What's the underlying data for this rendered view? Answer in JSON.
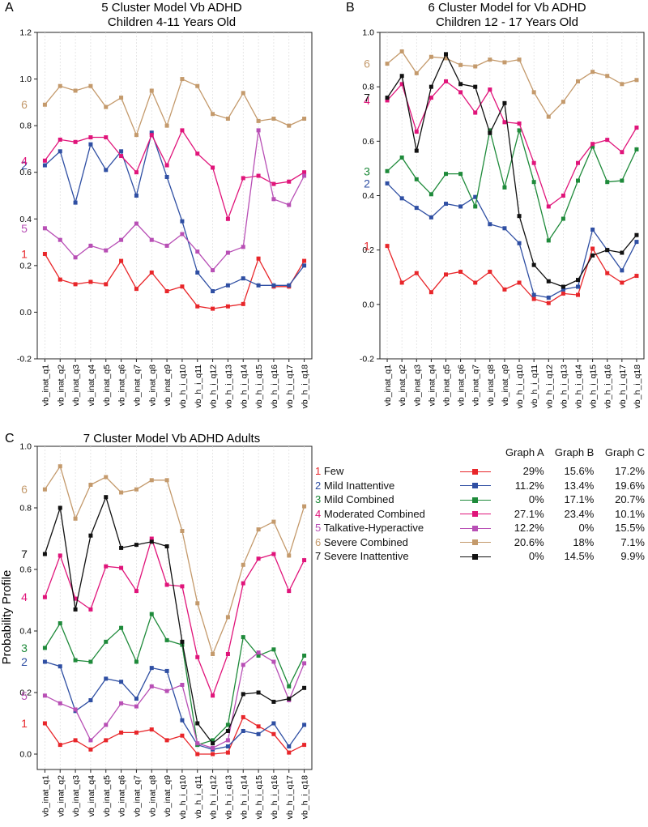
{
  "categories": [
    "vb_inat_q1",
    "vb_inat_q2",
    "vb_inat_q3",
    "vb_inat_q4",
    "vb_inat_q5",
    "vb_inat_q6",
    "vb_inat_q7",
    "vb_inat_q8",
    "vb_inat_q9",
    "vb_h_i_q10",
    "vb_h_i_q11",
    "vb_h_i_q12",
    "vb_h_i_q13",
    "vb_h_i_q14",
    "vb_h_i_q15",
    "vb_h_i_q16",
    "vb_h_i_q17",
    "vb_h_i_q18"
  ],
  "clusters": [
    {
      "id": "1",
      "name": "Few",
      "color": "#e8262a",
      "pctA": "29%",
      "pctB": "15.6%",
      "pctC": "17.2%"
    },
    {
      "id": "2",
      "name": "Mild Inattentive",
      "color": "#2f4fa3",
      "pctA": "11.2%",
      "pctB": "13.4%",
      "pctC": "19.6%"
    },
    {
      "id": "3",
      "name": "Mild Combined",
      "color": "#1e8a3a",
      "pctA": "0%",
      "pctB": "17.1%",
      "pctC": "20.7%"
    },
    {
      "id": "4",
      "name": "Moderated Combined",
      "color": "#e0147a",
      "pctA": "27.1%",
      "pctB": "23.4%",
      "pctC": "10.1%"
    },
    {
      "id": "5",
      "name": "Talkative-Hyperactive",
      "color": "#b84fb5",
      "pctA": "12.2%",
      "pctB": "0%",
      "pctC": "15.5%"
    },
    {
      "id": "6",
      "name": "Severe Combined",
      "color": "#c49a6c",
      "pctA": "20.6%",
      "pctB": "18%",
      "pctC": "7.1%"
    },
    {
      "id": "7",
      "name": "Severe Inattentive",
      "color": "#111111",
      "pctA": "0%",
      "pctB": "14.5%",
      "pctC": "9.9%"
    }
  ],
  "legend": {
    "col_a": "Graph A",
    "col_b": "Graph B",
    "col_c": "Graph C"
  },
  "y_axis_label": "Probability Profile",
  "chart_data": [
    {
      "panel": "A",
      "type": "line",
      "title": "5 Cluster Model Vb ADHD",
      "subtitle": "Children 4-11 Years Old",
      "ylim": [
        -0.2,
        1.2
      ],
      "yticks": [
        -0.2,
        0.0,
        0.2,
        0.4,
        0.6,
        0.8,
        1.0,
        1.2
      ],
      "series": [
        {
          "cluster": "1",
          "values": [
            0.25,
            0.14,
            0.12,
            0.13,
            0.12,
            0.22,
            0.1,
            0.17,
            0.09,
            0.11,
            0.025,
            0.015,
            0.025,
            0.035,
            0.23,
            0.11,
            0.11,
            0.22
          ]
        },
        {
          "cluster": "2",
          "values": [
            0.63,
            0.69,
            0.47,
            0.72,
            0.61,
            0.69,
            0.5,
            0.77,
            0.58,
            0.39,
            0.17,
            0.09,
            0.115,
            0.145,
            0.115,
            0.115,
            0.115,
            0.2
          ]
        },
        {
          "cluster": "4",
          "values": [
            0.65,
            0.74,
            0.73,
            0.75,
            0.75,
            0.67,
            0.6,
            0.76,
            0.63,
            0.78,
            0.68,
            0.62,
            0.4,
            0.575,
            0.585,
            0.55,
            0.56,
            0.6
          ]
        },
        {
          "cluster": "5",
          "values": [
            0.36,
            0.31,
            0.235,
            0.285,
            0.265,
            0.31,
            0.38,
            0.31,
            0.285,
            0.335,
            0.26,
            0.18,
            0.255,
            0.28,
            0.78,
            0.485,
            0.46,
            0.585
          ]
        },
        {
          "cluster": "6",
          "values": [
            0.89,
            0.97,
            0.95,
            0.97,
            0.88,
            0.92,
            0.76,
            0.95,
            0.8,
            1.0,
            0.97,
            0.85,
            0.83,
            0.94,
            0.82,
            0.83,
            0.8,
            0.83
          ]
        }
      ]
    },
    {
      "panel": "B",
      "type": "line",
      "title": "6 Cluster Model for Vb ADHD",
      "subtitle": "Children 12 - 17 Years Old",
      "ylim": [
        -0.2,
        1.0
      ],
      "yticks": [
        -0.2,
        0.0,
        0.2,
        0.4,
        0.6,
        0.8,
        1.0
      ],
      "series": [
        {
          "cluster": "1",
          "values": [
            0.215,
            0.08,
            0.115,
            0.045,
            0.11,
            0.12,
            0.08,
            0.12,
            0.055,
            0.08,
            0.02,
            0.005,
            0.04,
            0.035,
            0.205,
            0.115,
            0.08,
            0.105
          ]
        },
        {
          "cluster": "2",
          "values": [
            0.445,
            0.39,
            0.355,
            0.32,
            0.37,
            0.36,
            0.395,
            0.295,
            0.28,
            0.225,
            0.035,
            0.025,
            0.055,
            0.065,
            0.275,
            0.2,
            0.125,
            0.23
          ]
        },
        {
          "cluster": "3",
          "values": [
            0.49,
            0.54,
            0.46,
            0.405,
            0.48,
            0.48,
            0.36,
            0.64,
            0.43,
            0.64,
            0.45,
            0.235,
            0.315,
            0.455,
            0.58,
            0.45,
            0.455,
            0.57
          ]
        },
        {
          "cluster": "4",
          "values": [
            0.75,
            0.81,
            0.635,
            0.76,
            0.82,
            0.78,
            0.705,
            0.79,
            0.67,
            0.665,
            0.52,
            0.36,
            0.4,
            0.52,
            0.59,
            0.605,
            0.56,
            0.65
          ]
        },
        {
          "cluster": "6",
          "values": [
            0.885,
            0.93,
            0.85,
            0.91,
            0.905,
            0.88,
            0.875,
            0.9,
            0.89,
            0.9,
            0.78,
            0.69,
            0.745,
            0.82,
            0.855,
            0.84,
            0.81,
            0.825
          ]
        },
        {
          "cluster": "7",
          "values": [
            0.76,
            0.84,
            0.565,
            0.8,
            0.92,
            0.81,
            0.8,
            0.63,
            0.74,
            0.325,
            0.145,
            0.085,
            0.065,
            0.09,
            0.18,
            0.2,
            0.19,
            0.255
          ]
        }
      ]
    },
    {
      "panel": "C",
      "type": "line",
      "title": "7 Cluster Model Vb ADHD Adults",
      "ylabel": "Probability Profile",
      "ylim": [
        -0.05,
        1.0
      ],
      "yticks": [
        0.0,
        0.2,
        0.4,
        0.6,
        0.8,
        1.0
      ],
      "series": [
        {
          "cluster": "1",
          "values": [
            0.1,
            0.03,
            0.045,
            0.015,
            0.045,
            0.07,
            0.07,
            0.08,
            0.045,
            0.06,
            0.0,
            0.0,
            0.005,
            0.12,
            0.09,
            0.065,
            0.005,
            0.03
          ]
        },
        {
          "cluster": "2",
          "values": [
            0.3,
            0.285,
            0.14,
            0.175,
            0.245,
            0.235,
            0.18,
            0.28,
            0.27,
            0.11,
            0.03,
            0.015,
            0.025,
            0.075,
            0.065,
            0.1,
            0.025,
            0.095
          ]
        },
        {
          "cluster": "3",
          "values": [
            0.345,
            0.425,
            0.305,
            0.3,
            0.365,
            0.41,
            0.3,
            0.455,
            0.37,
            0.355,
            0.03,
            0.045,
            0.095,
            0.38,
            0.32,
            0.34,
            0.22,
            0.32
          ]
        },
        {
          "cluster": "4",
          "values": [
            0.51,
            0.645,
            0.505,
            0.47,
            0.61,
            0.605,
            0.53,
            0.7,
            0.55,
            0.545,
            0.315,
            0.19,
            0.325,
            0.555,
            0.635,
            0.65,
            0.53,
            0.63
          ]
        },
        {
          "cluster": "5",
          "values": [
            0.19,
            0.165,
            0.145,
            0.045,
            0.095,
            0.165,
            0.155,
            0.22,
            0.205,
            0.225,
            0.035,
            0.02,
            0.045,
            0.29,
            0.33,
            0.3,
            0.175,
            0.295
          ]
        },
        {
          "cluster": "6",
          "values": [
            0.86,
            0.935,
            0.765,
            0.875,
            0.9,
            0.85,
            0.86,
            0.89,
            0.89,
            0.725,
            0.49,
            0.325,
            0.445,
            0.615,
            0.73,
            0.755,
            0.645,
            0.805
          ]
        },
        {
          "cluster": "7",
          "values": [
            0.65,
            0.8,
            0.47,
            0.71,
            0.835,
            0.67,
            0.68,
            0.69,
            0.675,
            0.365,
            0.1,
            0.035,
            0.075,
            0.195,
            0.2,
            0.17,
            0.18,
            0.215
          ]
        }
      ]
    }
  ],
  "panel_letters": [
    "A",
    "B",
    "C"
  ]
}
